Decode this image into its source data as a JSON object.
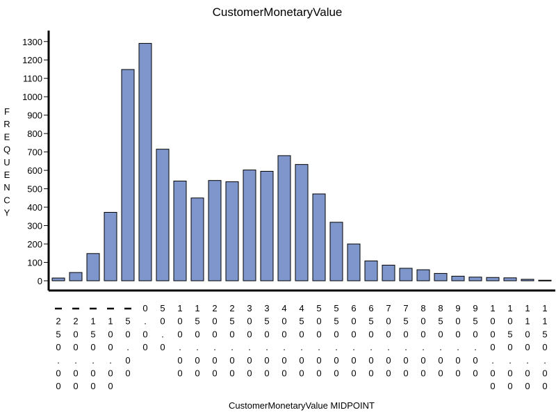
{
  "chart_data": {
    "type": "bar",
    "title": "CustomerMonetaryValue",
    "xlabel": "CustomerMonetaryValue  MIDPOINT",
    "ylabel": "FREQUENCY",
    "categories": [
      "-250.00",
      "-200.00",
      "-150.00",
      "-100.00",
      "-50.00",
      "0.00",
      "50.0",
      "100.00",
      "150.00",
      "200.00",
      "250.00",
      "300.00",
      "350.00",
      "400.00",
      "450.00",
      "500.00",
      "550.00",
      "600.00",
      "650.00",
      "700.00",
      "750.00",
      "800.00",
      "850.00",
      "900.00",
      "950.00",
      "1000.00",
      "1050.00",
      "1100.00",
      "1150.00"
    ],
    "values": [
      15,
      45,
      148,
      372,
      1148,
      1290,
      715,
      542,
      450,
      545,
      538,
      602,
      595,
      680,
      632,
      472,
      318,
      200,
      108,
      85,
      68,
      60,
      40,
      25,
      20,
      18,
      16,
      8,
      3
    ],
    "yticks": [
      0,
      100,
      200,
      300,
      400,
      500,
      600,
      700,
      800,
      900,
      1000,
      1100,
      1200,
      1300
    ],
    "ylim": [
      0,
      1300
    ],
    "bar_color": "#7f96cd",
    "grid": false
  }
}
